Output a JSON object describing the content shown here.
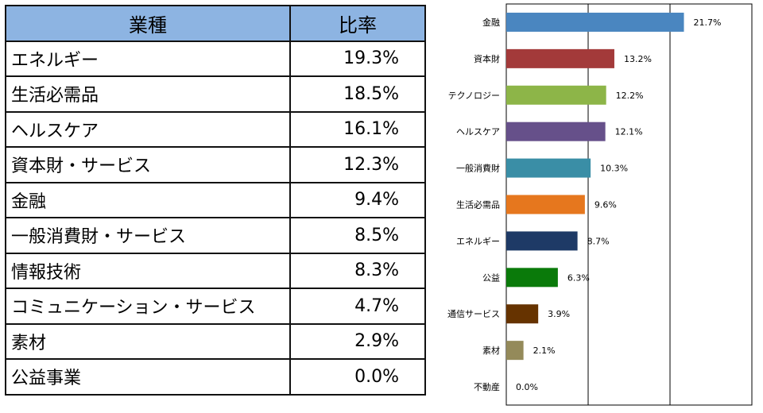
{
  "table": {
    "headers": [
      "業種",
      "比率"
    ],
    "rows": [
      {
        "sector": "エネルギー",
        "rate": "19.3%"
      },
      {
        "sector": "生活必需品",
        "rate": "18.5%"
      },
      {
        "sector": "ヘルスケア",
        "rate": "16.1%"
      },
      {
        "sector": "資本財・サービス",
        "rate": "12.3%"
      },
      {
        "sector": "金融",
        "rate": "9.4%"
      },
      {
        "sector": "一般消費財・サービス",
        "rate": "8.5%"
      },
      {
        "sector": "情報技術",
        "rate": "8.3%"
      },
      {
        "sector": "コミュニケーション・サービス",
        "rate": "4.7%"
      },
      {
        "sector": "素材",
        "rate": "2.9%"
      },
      {
        "sector": "公益事業",
        "rate": "0.0%"
      }
    ]
  },
  "chart_data": {
    "type": "bar",
    "orientation": "horizontal",
    "categories": [
      "金融",
      "資本財",
      "テクノロジー",
      "ヘルスケア",
      "一般消費財",
      "生活必需品",
      "エネルギー",
      "公益",
      "通信サービス",
      "素材",
      "不動産"
    ],
    "values": [
      21.7,
      13.2,
      12.2,
      12.1,
      10.3,
      9.6,
      8.7,
      6.3,
      3.9,
      2.1,
      0.0
    ],
    "labels": [
      "21.7%",
      "13.2%",
      "12.2%",
      "12.1%",
      "10.3%",
      "9.6%",
      "8.7%",
      "6.3%",
      "3.9%",
      "2.1%",
      "0.0%"
    ],
    "colors": [
      "#4a86c0",
      "#a33a3a",
      "#8db548",
      "#66508a",
      "#3a8ea6",
      "#e6771e",
      "#1e3a66",
      "#0a7a0a",
      "#663300",
      "#948a5a",
      "#bbbbbb"
    ],
    "xlim": [
      0,
      30
    ],
    "gridlines": [
      10,
      20
    ],
    "xlabel": "",
    "ylabel": "",
    "title": "",
    "legend": "none",
    "grid": true
  }
}
